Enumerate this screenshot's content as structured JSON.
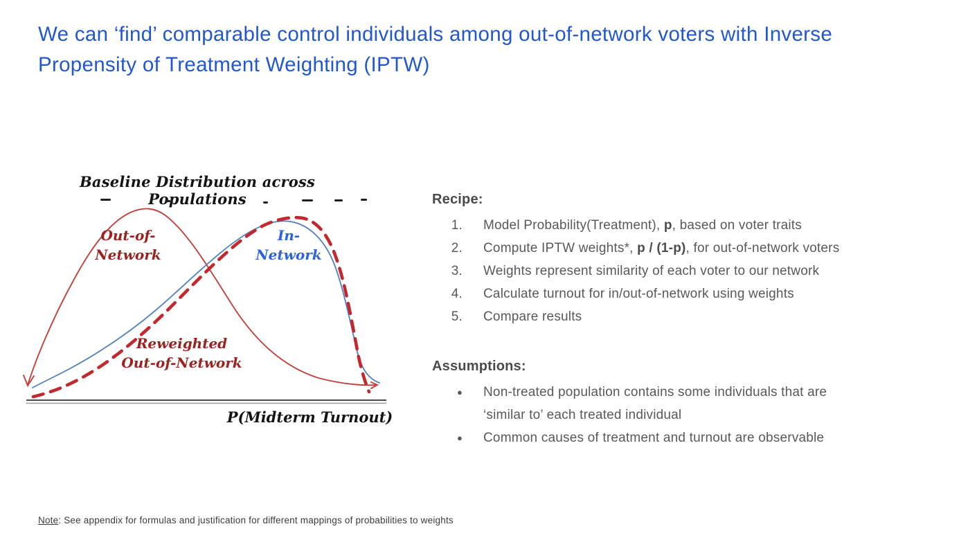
{
  "slide": {
    "title": "We can ‘find’ comparable control individuals among out-of-network voters with Inverse Propensity of Treatment Weighting (IPTW)",
    "title_color": "#2157d0"
  },
  "chart": {
    "title": "Baseline Distribution across Populations",
    "xlabel": "P(Midterm Turnout)",
    "labels": {
      "out_of_network": "Out-of-\nNetwork",
      "in_network": "In-\nNetwork",
      "reweighted": "Reweighted\nOut-of-Network"
    },
    "colors": {
      "out_of_network_curve": "#c5413e",
      "in_network_curve": "#4e7fbe",
      "reweighted_curve": "#c2292e",
      "label_dark_red": "#9c2220",
      "label_blue": "#2a62e0",
      "axis": "#4a4a4a"
    }
  },
  "chart_data": {
    "type": "line",
    "note": "hand-drawn density sketch; values approximate, axes unlabeled (normalized 0-1)",
    "x": [
      0,
      0.1,
      0.2,
      0.3,
      0.4,
      0.5,
      0.6,
      0.7,
      0.8,
      0.9,
      1.0
    ],
    "series": [
      {
        "name": "Out-of-Network",
        "style": "solid",
        "color": "#c5413e",
        "values": [
          0.05,
          0.45,
          0.85,
          1.0,
          0.9,
          0.62,
          0.38,
          0.22,
          0.12,
          0.07,
          0.05
        ]
      },
      {
        "name": "In-Network",
        "style": "solid",
        "color": "#4e7fbe",
        "values": [
          0.05,
          0.09,
          0.16,
          0.26,
          0.38,
          0.52,
          0.68,
          0.85,
          0.97,
          0.9,
          0.15
        ]
      },
      {
        "name": "Reweighted Out-of-Network",
        "style": "dashed",
        "color": "#c2292e",
        "values": [
          0.01,
          0.04,
          0.1,
          0.2,
          0.33,
          0.48,
          0.65,
          0.85,
          1.0,
          0.95,
          0.05
        ]
      }
    ],
    "title": "Baseline Distribution across Populations",
    "xlabel": "P(Midterm Turnout)",
    "ylabel": "",
    "legend_position": "inline-annotations",
    "grid": false
  },
  "recipe": {
    "heading": "Recipe:",
    "items": [
      [
        {
          "t": "Model Probability(Treatment), "
        },
        {
          "t": "p",
          "b": 1
        },
        {
          "t": ", based on voter traits"
        }
      ],
      [
        {
          "t": "Compute IPTW weights*, "
        },
        {
          "t": "p / (1-p)",
          "b": 1
        },
        {
          "t": ", for out-of-network voters"
        }
      ],
      [
        {
          "t": "Weights represent similarity of each voter to our network"
        }
      ],
      [
        {
          "t": "Calculate turnout for in/out-of-network using weights"
        }
      ],
      [
        {
          "t": "Compare results"
        }
      ]
    ]
  },
  "assumptions": {
    "heading": "Assumptions:",
    "bullet_glyph": "●",
    "items": [
      [
        "Non-treated population contains some individuals that are",
        "‘similar to’ each treated individual"
      ],
      [
        "Common causes of treatment and turnout are observable"
      ]
    ]
  },
  "footnote": {
    "label": "Note",
    "text": ": See appendix for formulas and justification for different mappings of probabilities to weights"
  }
}
